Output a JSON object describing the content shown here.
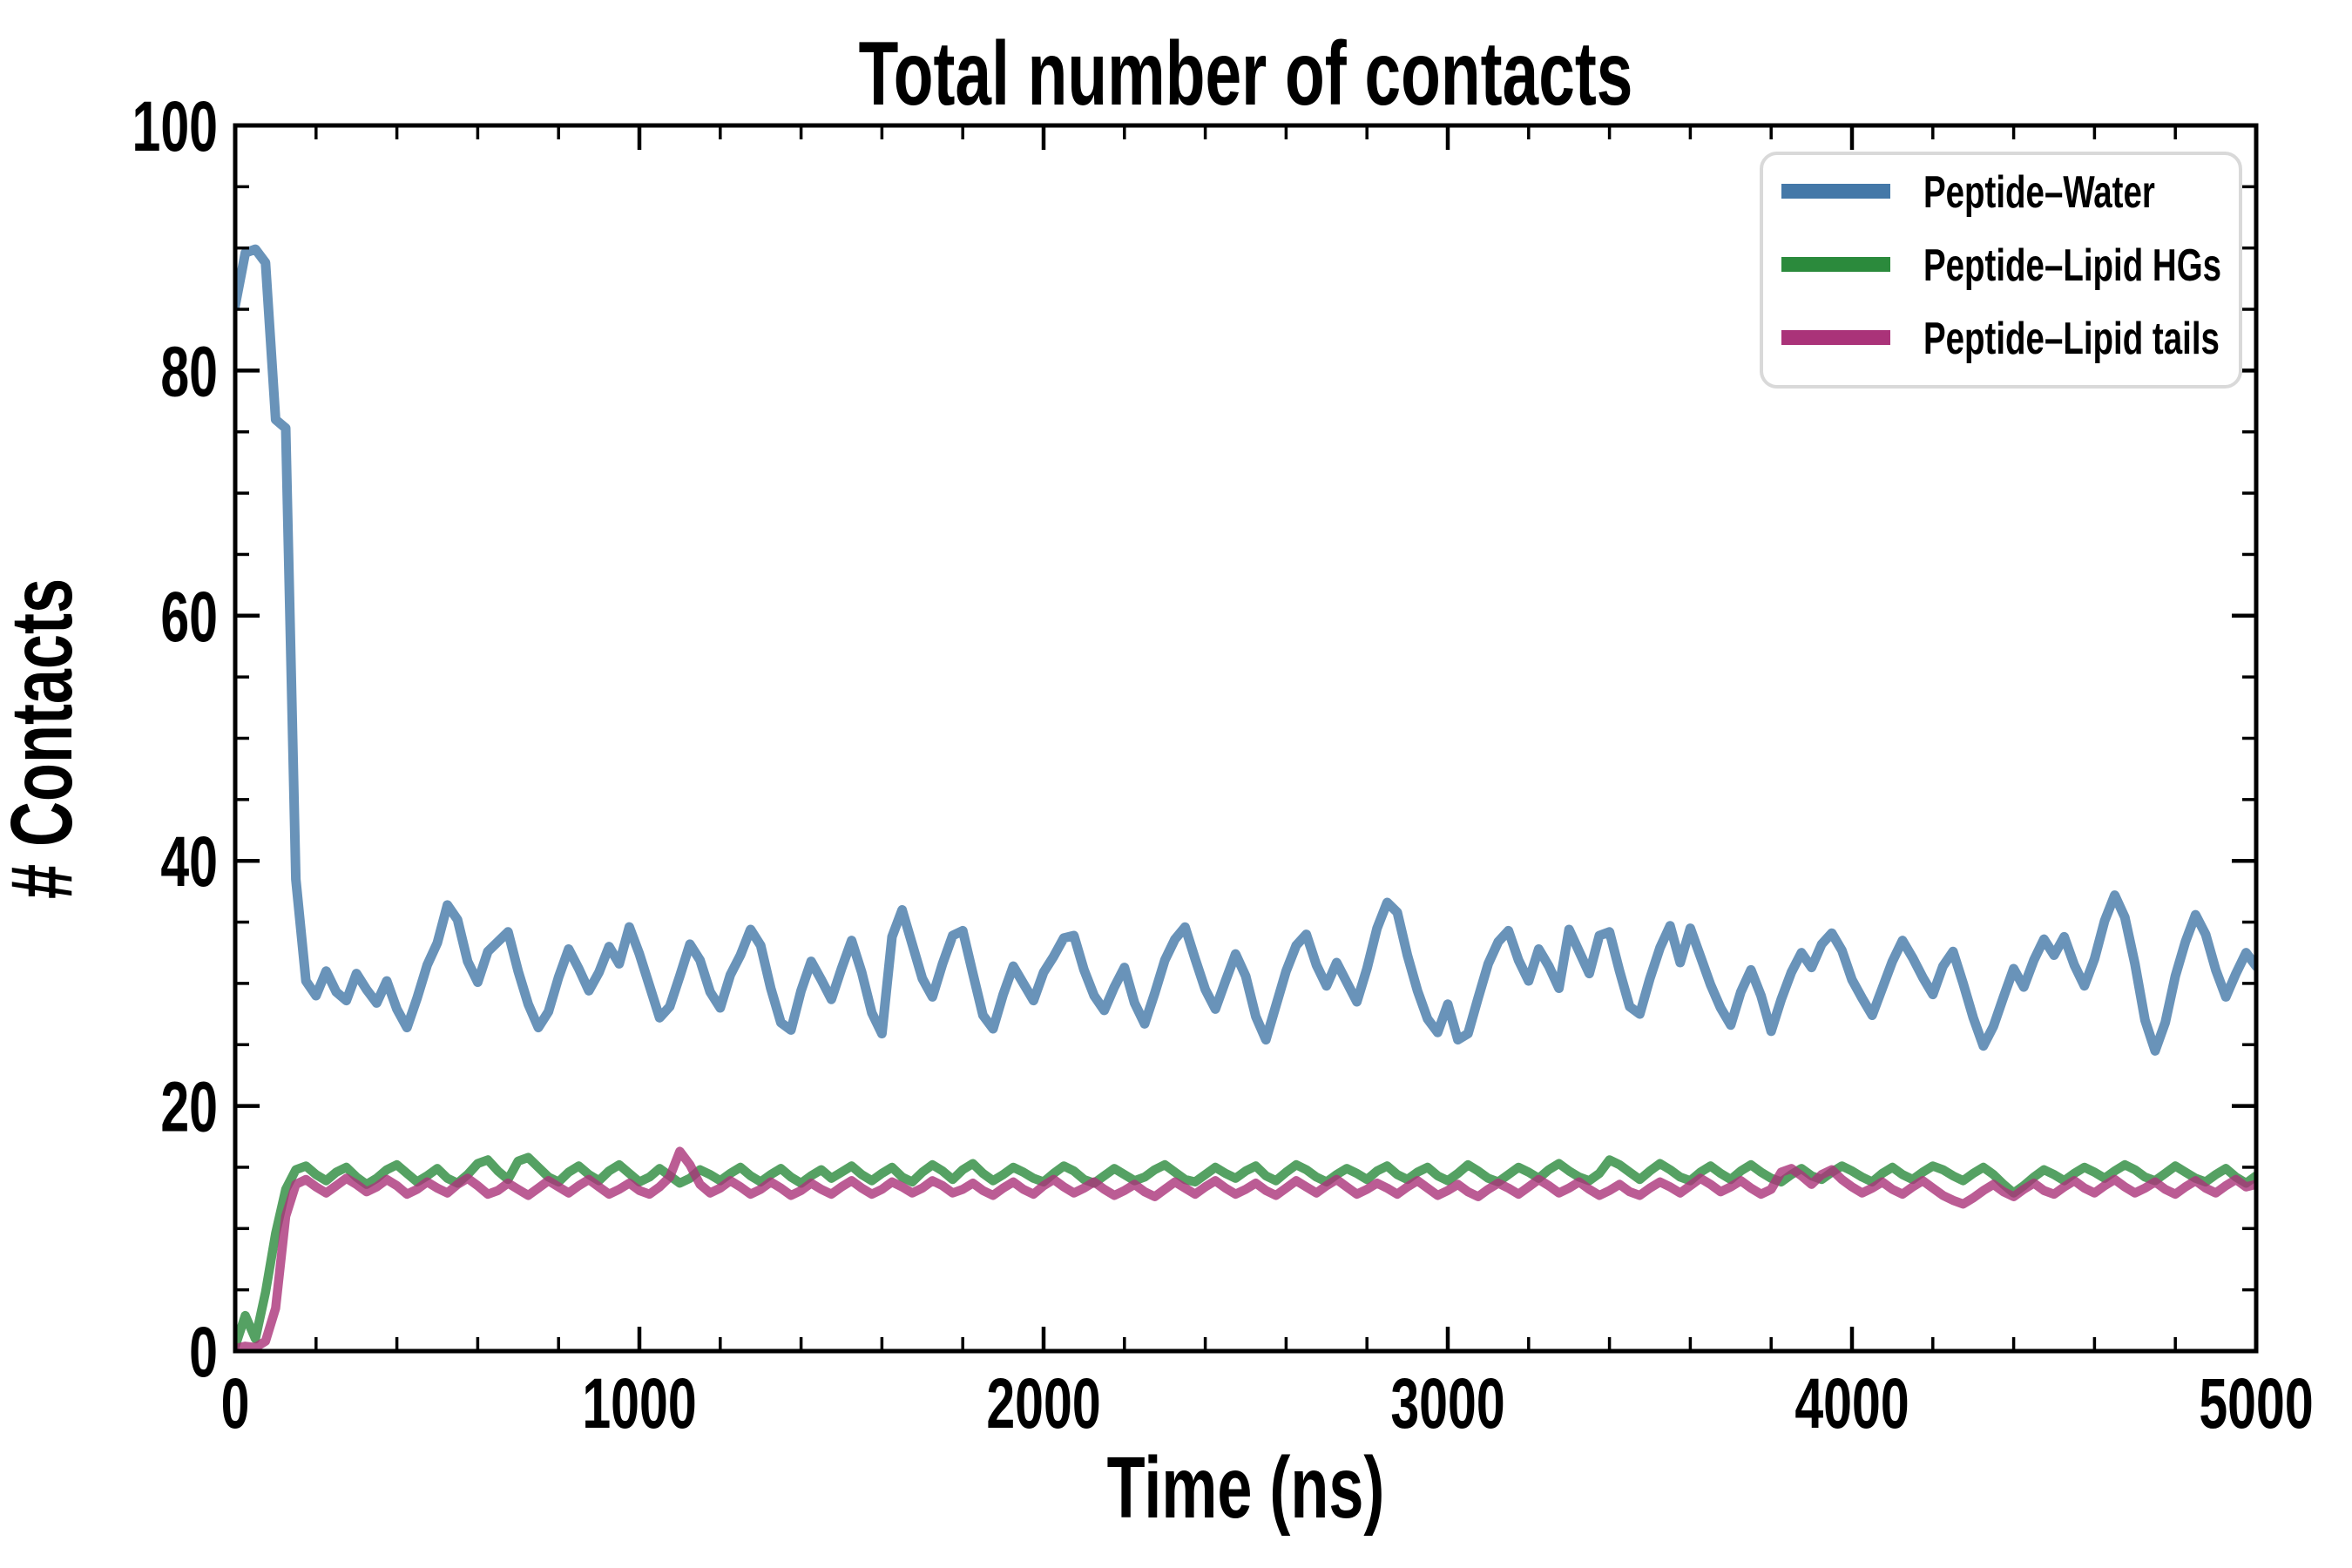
{
  "chart_data": {
    "type": "line",
    "title": "Total number of contacts",
    "xlabel": "Time (ns)",
    "ylabel": "# Contacts",
    "xlim": [
      0,
      5000
    ],
    "ylim": [
      0,
      100
    ],
    "x_major_ticks": [
      0,
      1000,
      2000,
      3000,
      4000,
      5000
    ],
    "y_major_ticks": [
      0,
      20,
      40,
      60,
      80,
      100
    ],
    "x_minor_step": 200,
    "y_minor_step": 5,
    "grid": "off",
    "tick_direction": "in",
    "legend_position": "upper right",
    "legend_frame_color": "#d9d9d9",
    "background_color": "#ffffff",
    "spine_color": "#000000",
    "line_opacity": 0.8,
    "t0": 0,
    "t_step": 25,
    "series": [
      {
        "name": "Peptide–Water",
        "color": "#4478a8",
        "values": [
          85.3,
          89.6,
          89.9,
          88.8,
          76.0,
          75.3,
          38.5,
          30.2,
          29.0,
          31.0,
          29.3,
          28.6,
          30.8,
          29.5,
          28.4,
          30.2,
          27.9,
          26.4,
          28.8,
          31.5,
          33.3,
          36.4,
          35.2,
          31.8,
          30.1,
          32.6,
          33.4,
          34.2,
          31.0,
          28.3,
          26.4,
          27.7,
          30.5,
          32.8,
          31.2,
          29.4,
          30.9,
          33.0,
          31.6,
          34.6,
          32.4,
          29.8,
          27.2,
          28.1,
          30.6,
          33.2,
          31.9,
          29.3,
          28.0,
          30.7,
          32.3,
          34.4,
          33.1,
          29.6,
          26.8,
          26.2,
          29.4,
          31.8,
          30.3,
          28.7,
          31.2,
          33.5,
          30.9,
          27.6,
          25.9,
          33.8,
          36.0,
          33.2,
          30.4,
          28.9,
          31.6,
          33.9,
          34.3,
          30.8,
          27.4,
          26.3,
          29.1,
          31.4,
          30.0,
          28.6,
          30.9,
          32.2,
          33.7,
          33.9,
          31.1,
          29.0,
          27.8,
          29.7,
          31.3,
          28.4,
          26.7,
          29.2,
          31.9,
          33.6,
          34.6,
          32.0,
          29.5,
          27.9,
          30.2,
          32.4,
          30.6,
          27.3,
          25.4,
          28.2,
          31.0,
          33.1,
          34.0,
          31.5,
          29.8,
          31.7,
          30.1,
          28.5,
          31.2,
          34.5,
          36.6,
          35.8,
          32.3,
          29.4,
          27.1,
          26.0,
          28.3,
          25.4,
          25.9,
          28.8,
          31.6,
          33.4,
          34.3,
          31.9,
          30.2,
          32.8,
          31.4,
          29.6,
          34.4,
          32.6,
          30.8,
          33.9,
          34.2,
          31.0,
          28.1,
          27.5,
          30.4,
          32.9,
          34.7,
          31.7,
          34.5,
          32.2,
          29.9,
          28.0,
          26.6,
          29.3,
          31.1,
          29.0,
          26.1,
          28.7,
          30.9,
          32.5,
          31.3,
          33.2,
          34.1,
          32.7,
          30.3,
          28.8,
          27.4,
          29.6,
          31.8,
          33.5,
          32.1,
          30.5,
          29.1,
          31.4,
          32.6,
          30.0,
          27.2,
          24.9,
          26.5,
          28.9,
          31.2,
          29.7,
          31.9,
          33.6,
          32.3,
          33.8,
          31.5,
          29.8,
          32.0,
          35.1,
          37.2,
          35.4,
          31.6,
          27.0,
          24.5,
          26.8,
          30.6,
          33.4,
          35.6,
          34.0,
          31.1,
          28.9,
          30.8,
          32.5,
          31.4
        ]
      },
      {
        "name": "Peptide–Lipid HGs",
        "color": "#2b8a3c",
        "values": [
          0.4,
          2.9,
          1.0,
          4.8,
          9.6,
          13.2,
          14.8,
          15.1,
          14.4,
          13.9,
          14.6,
          15.0,
          14.2,
          13.6,
          14.1,
          14.8,
          15.2,
          14.5,
          13.8,
          14.3,
          14.9,
          14.1,
          13.7,
          14.4,
          15.3,
          15.6,
          14.7,
          14.0,
          15.5,
          15.8,
          15.0,
          14.2,
          13.8,
          14.6,
          15.1,
          14.4,
          13.9,
          14.7,
          15.2,
          14.5,
          13.8,
          14.2,
          14.9,
          14.3,
          13.7,
          14.1,
          14.8,
          14.4,
          13.9,
          14.5,
          15.0,
          14.3,
          13.8,
          14.4,
          14.9,
          14.2,
          13.7,
          14.3,
          14.8,
          14.1,
          14.6,
          15.1,
          14.4,
          13.9,
          14.5,
          15.0,
          14.2,
          13.8,
          14.6,
          15.2,
          14.7,
          14.0,
          14.8,
          15.3,
          14.5,
          13.9,
          14.4,
          15.0,
          14.6,
          14.1,
          13.8,
          14.5,
          15.1,
          14.7,
          14.0,
          13.7,
          14.3,
          14.9,
          14.4,
          13.9,
          14.2,
          14.8,
          15.2,
          14.6,
          14.0,
          13.8,
          14.4,
          15.0,
          14.5,
          14.1,
          14.7,
          15.1,
          14.3,
          13.9,
          14.6,
          15.2,
          14.8,
          14.2,
          13.8,
          14.4,
          14.9,
          14.5,
          14.0,
          14.7,
          15.1,
          14.4,
          14.0,
          14.6,
          15.0,
          14.3,
          13.9,
          14.5,
          15.2,
          14.7,
          14.1,
          13.8,
          14.4,
          15.0,
          14.6,
          14.1,
          14.8,
          15.3,
          14.7,
          14.2,
          13.9,
          14.5,
          15.6,
          15.2,
          14.6,
          14.0,
          14.7,
          15.3,
          14.8,
          14.2,
          13.9,
          14.6,
          15.1,
          14.5,
          14.0,
          14.7,
          15.2,
          14.6,
          14.1,
          13.8,
          14.4,
          14.9,
          14.3,
          14.0,
          14.6,
          15.1,
          14.7,
          14.2,
          13.8,
          14.5,
          15.0,
          14.4,
          14.0,
          14.6,
          15.1,
          14.8,
          14.3,
          13.9,
          14.5,
          15.0,
          14.4,
          13.6,
          12.9,
          13.5,
          14.2,
          14.8,
          14.4,
          13.9,
          14.5,
          15.0,
          14.6,
          14.1,
          14.7,
          15.2,
          14.8,
          14.2,
          13.9,
          14.5,
          15.1,
          14.6,
          14.1,
          13.8,
          14.4,
          14.9,
          14.2,
          13.7,
          14.3
        ]
      },
      {
        "name": "Peptide–Lipid tails",
        "color": "#aa3379",
        "values": [
          0.2,
          0.4,
          0.3,
          0.8,
          3.5,
          11.0,
          13.6,
          14.0,
          13.4,
          12.9,
          13.5,
          14.1,
          13.6,
          13.0,
          13.4,
          14.0,
          13.5,
          12.8,
          13.2,
          13.8,
          13.3,
          12.9,
          13.6,
          14.1,
          13.5,
          12.8,
          13.1,
          13.7,
          13.2,
          12.7,
          13.3,
          13.9,
          13.4,
          12.9,
          13.5,
          14.0,
          13.4,
          12.8,
          13.2,
          13.7,
          13.1,
          12.8,
          13.4,
          14.2,
          16.3,
          15.2,
          13.6,
          12.9,
          13.3,
          13.9,
          13.4,
          12.8,
          13.2,
          13.8,
          13.3,
          12.7,
          13.1,
          13.7,
          13.2,
          12.8,
          13.4,
          13.9,
          13.3,
          12.8,
          13.2,
          13.8,
          13.4,
          12.9,
          13.3,
          13.9,
          13.5,
          12.9,
          13.2,
          13.7,
          13.1,
          12.7,
          13.3,
          13.8,
          13.2,
          12.8,
          13.5,
          14.0,
          13.4,
          12.9,
          13.3,
          13.8,
          13.2,
          12.7,
          13.1,
          13.6,
          13.0,
          12.6,
          13.2,
          13.8,
          13.3,
          12.8,
          13.4,
          13.9,
          13.3,
          12.8,
          13.2,
          13.7,
          13.1,
          12.7,
          13.3,
          13.9,
          13.4,
          12.9,
          13.5,
          14.0,
          13.4,
          12.8,
          13.2,
          13.7,
          13.3,
          12.8,
          13.4,
          13.9,
          13.3,
          12.7,
          13.1,
          13.6,
          13.0,
          12.6,
          13.2,
          13.7,
          13.3,
          12.8,
          13.4,
          14.0,
          13.5,
          12.9,
          13.3,
          13.8,
          13.2,
          12.7,
          13.1,
          13.6,
          13.0,
          12.7,
          13.3,
          13.8,
          13.4,
          12.9,
          13.5,
          14.1,
          13.6,
          13.0,
          13.4,
          13.9,
          13.3,
          12.8,
          13.2,
          14.6,
          14.9,
          14.3,
          13.6,
          14.4,
          14.8,
          14.0,
          13.4,
          12.9,
          13.3,
          13.8,
          13.2,
          12.8,
          13.4,
          13.9,
          13.3,
          12.7,
          12.3,
          12.0,
          12.5,
          13.1,
          13.6,
          13.0,
          12.6,
          13.2,
          13.7,
          13.1,
          12.8,
          13.4,
          13.9,
          13.3,
          12.9,
          13.5,
          14.0,
          13.4,
          12.9,
          13.3,
          13.8,
          13.2,
          12.8,
          13.4,
          13.9,
          13.3,
          12.9,
          13.5,
          14.0,
          13.4,
          13.6
        ]
      }
    ]
  }
}
